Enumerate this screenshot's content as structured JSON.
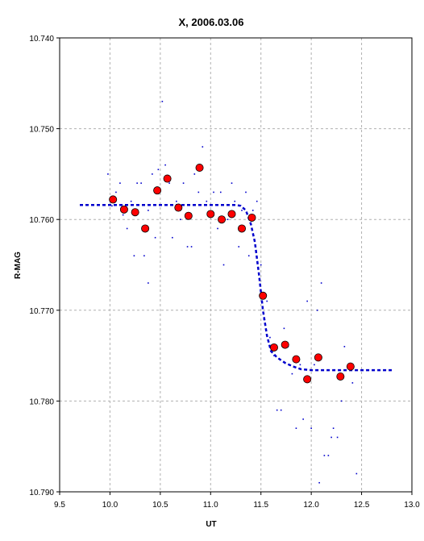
{
  "chart_data": {
    "type": "scatter",
    "title": "X, 2006.03.06",
    "xlabel": "UT",
    "ylabel": "R-MAG",
    "xlim": [
      9.5,
      13.0
    ],
    "ylim": [
      10.74,
      10.79
    ],
    "y_inverted": true,
    "grid": true,
    "xticks": [
      "9.5",
      "10.0",
      "10.5",
      "11.0",
      "11.5",
      "12.0",
      "12.5",
      "13.0"
    ],
    "yticks": [
      "10.740",
      "10.750",
      "10.760",
      "10.770",
      "10.780",
      "10.790"
    ],
    "colors": {
      "binned": "#ff0000",
      "raw": "#0000cc",
      "fit": "#0000cc",
      "grid": "#b0b0b0"
    },
    "binned_points": [
      {
        "x": 10.03,
        "y": 10.7578
      },
      {
        "x": 10.14,
        "y": 10.7589
      },
      {
        "x": 10.25,
        "y": 10.7592
      },
      {
        "x": 10.35,
        "y": 10.761
      },
      {
        "x": 10.47,
        "y": 10.7568
      },
      {
        "x": 10.57,
        "y": 10.7555
      },
      {
        "x": 10.68,
        "y": 10.7587
      },
      {
        "x": 10.78,
        "y": 10.7596
      },
      {
        "x": 10.89,
        "y": 10.7543
      },
      {
        "x": 11.0,
        "y": 10.7594
      },
      {
        "x": 11.11,
        "y": 10.76
      },
      {
        "x": 11.21,
        "y": 10.7594
      },
      {
        "x": 11.31,
        "y": 10.761
      },
      {
        "x": 11.41,
        "y": 10.7598
      },
      {
        "x": 11.52,
        "y": 10.7684
      },
      {
        "x": 11.63,
        "y": 10.7741
      },
      {
        "x": 11.74,
        "y": 10.7738
      },
      {
        "x": 11.85,
        "y": 10.7754
      },
      {
        "x": 11.96,
        "y": 10.7776
      },
      {
        "x": 12.07,
        "y": 10.7752
      },
      {
        "x": 12.29,
        "y": 10.7773
      },
      {
        "x": 12.39,
        "y": 10.7762
      }
    ],
    "raw_points": [
      {
        "x": 9.98,
        "y": 10.755
      },
      {
        "x": 10.02,
        "y": 10.7585
      },
      {
        "x": 10.06,
        "y": 10.757
      },
      {
        "x": 10.1,
        "y": 10.756
      },
      {
        "x": 10.13,
        "y": 10.7595
      },
      {
        "x": 10.17,
        "y": 10.761
      },
      {
        "x": 10.21,
        "y": 10.758
      },
      {
        "x": 10.24,
        "y": 10.764
      },
      {
        "x": 10.27,
        "y": 10.756
      },
      {
        "x": 10.31,
        "y": 10.756
      },
      {
        "x": 10.34,
        "y": 10.764
      },
      {
        "x": 10.38,
        "y": 10.759
      },
      {
        "x": 10.38,
        "y": 10.767
      },
      {
        "x": 10.42,
        "y": 10.755
      },
      {
        "x": 10.45,
        "y": 10.762
      },
      {
        "x": 10.48,
        "y": 10.7545
      },
      {
        "x": 10.52,
        "y": 10.747
      },
      {
        "x": 10.55,
        "y": 10.754
      },
      {
        "x": 10.59,
        "y": 10.756
      },
      {
        "x": 10.62,
        "y": 10.762
      },
      {
        "x": 10.66,
        "y": 10.758
      },
      {
        "x": 10.7,
        "y": 10.76
      },
      {
        "x": 10.73,
        "y": 10.756
      },
      {
        "x": 10.77,
        "y": 10.763
      },
      {
        "x": 10.81,
        "y": 10.763
      },
      {
        "x": 10.84,
        "y": 10.755
      },
      {
        "x": 10.88,
        "y": 10.757
      },
      {
        "x": 10.92,
        "y": 10.752
      },
      {
        "x": 10.96,
        "y": 10.758
      },
      {
        "x": 10.99,
        "y": 10.7595
      },
      {
        "x": 11.03,
        "y": 10.757
      },
      {
        "x": 11.07,
        "y": 10.761
      },
      {
        "x": 11.1,
        "y": 10.757
      },
      {
        "x": 11.13,
        "y": 10.765
      },
      {
        "x": 11.17,
        "y": 10.76
      },
      {
        "x": 11.21,
        "y": 10.756
      },
      {
        "x": 11.24,
        "y": 10.758
      },
      {
        "x": 11.28,
        "y": 10.763
      },
      {
        "x": 11.31,
        "y": 10.759
      },
      {
        "x": 11.35,
        "y": 10.757
      },
      {
        "x": 11.38,
        "y": 10.764
      },
      {
        "x": 11.42,
        "y": 10.759
      },
      {
        "x": 11.46,
        "y": 10.758
      },
      {
        "x": 11.5,
        "y": 10.765
      },
      {
        "x": 11.53,
        "y": 10.771
      },
      {
        "x": 11.56,
        "y": 10.769
      },
      {
        "x": 11.59,
        "y": 10.773
      },
      {
        "x": 11.63,
        "y": 10.775
      },
      {
        "x": 11.66,
        "y": 10.781
      },
      {
        "x": 11.7,
        "y": 10.781
      },
      {
        "x": 11.73,
        "y": 10.772
      },
      {
        "x": 11.77,
        "y": 10.774
      },
      {
        "x": 11.81,
        "y": 10.777
      },
      {
        "x": 11.85,
        "y": 10.783
      },
      {
        "x": 11.89,
        "y": 10.776
      },
      {
        "x": 11.92,
        "y": 10.782
      },
      {
        "x": 11.96,
        "y": 10.769
      },
      {
        "x": 12.0,
        "y": 10.783
      },
      {
        "x": 12.03,
        "y": 10.776
      },
      {
        "x": 12.06,
        "y": 10.77
      },
      {
        "x": 12.08,
        "y": 10.789
      },
      {
        "x": 12.1,
        "y": 10.767
      },
      {
        "x": 12.13,
        "y": 10.786
      },
      {
        "x": 12.17,
        "y": 10.786
      },
      {
        "x": 12.2,
        "y": 10.784
      },
      {
        "x": 12.22,
        "y": 10.783
      },
      {
        "x": 12.26,
        "y": 10.784
      },
      {
        "x": 12.3,
        "y": 10.78
      },
      {
        "x": 12.33,
        "y": 10.774
      },
      {
        "x": 12.37,
        "y": 10.776
      },
      {
        "x": 12.41,
        "y": 10.778
      },
      {
        "x": 12.45,
        "y": 10.788
      }
    ],
    "fit_curve": [
      {
        "x": 9.7,
        "y": 10.7584
      },
      {
        "x": 10.0,
        "y": 10.7584
      },
      {
        "x": 10.5,
        "y": 10.7584
      },
      {
        "x": 11.0,
        "y": 10.7584
      },
      {
        "x": 11.25,
        "y": 10.7584
      },
      {
        "x": 11.3,
        "y": 10.7585
      },
      {
        "x": 11.35,
        "y": 10.759
      },
      {
        "x": 11.4,
        "y": 10.7605
      },
      {
        "x": 11.44,
        "y": 10.7625
      },
      {
        "x": 11.48,
        "y": 10.766
      },
      {
        "x": 11.52,
        "y": 10.77
      },
      {
        "x": 11.56,
        "y": 10.7728
      },
      {
        "x": 11.6,
        "y": 10.7745
      },
      {
        "x": 11.66,
        "y": 10.7752
      },
      {
        "x": 11.74,
        "y": 10.7758
      },
      {
        "x": 11.82,
        "y": 10.7762
      },
      {
        "x": 11.9,
        "y": 10.7765
      },
      {
        "x": 12.0,
        "y": 10.7766
      },
      {
        "x": 12.4,
        "y": 10.7766
      },
      {
        "x": 12.8,
        "y": 10.7766
      }
    ]
  }
}
